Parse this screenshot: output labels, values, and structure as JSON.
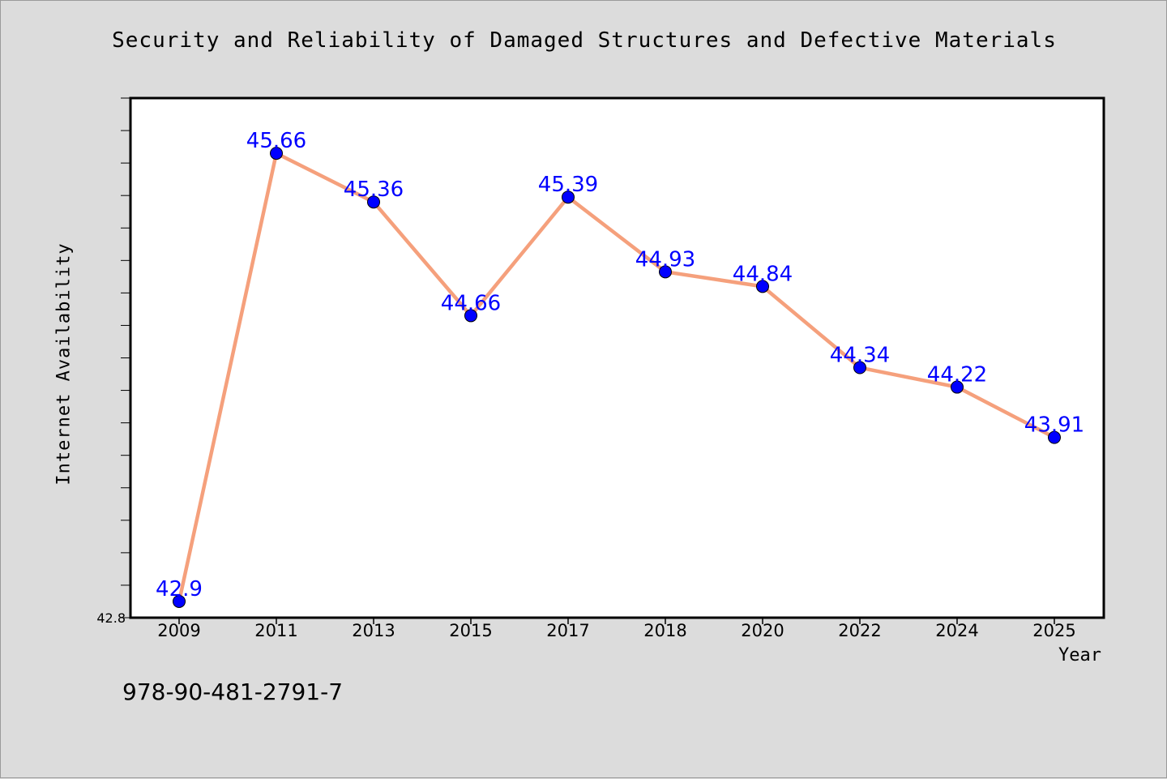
{
  "chart_data": {
    "type": "line",
    "title": "Security and Reliability of Damaged Structures and Defective Materials",
    "xlabel": "Year",
    "ylabel": "Internet Availability",
    "categories": [
      "2009",
      "2011",
      "2013",
      "2015",
      "2017",
      "2018",
      "2020",
      "2022",
      "2024",
      "2025"
    ],
    "series": [
      {
        "values": [
          42.9,
          45.66,
          45.36,
          44.66,
          45.39,
          44.93,
          44.84,
          44.34,
          44.22,
          43.91
        ],
        "data_labels": [
          "42.9",
          "45.66",
          "45.36",
          "44.66",
          "45.39",
          "44.93",
          "44.84",
          "44.34",
          "44.22",
          "43.91"
        ],
        "line_color": "#f5a07c",
        "marker_color": "#0000ff"
      }
    ],
    "ylim": [
      42.8,
      46.0
    ],
    "y_tick_labels": [
      "42.8"
    ],
    "grid": false,
    "legend": "none"
  },
  "footer": {
    "code": "978-90-481-2791-7"
  },
  "colors": {
    "background": "#dcdcdc",
    "plot_background": "#ffffff",
    "line": "#f5a07c",
    "marker": "#0000ff",
    "data_label": "#0000ff"
  }
}
